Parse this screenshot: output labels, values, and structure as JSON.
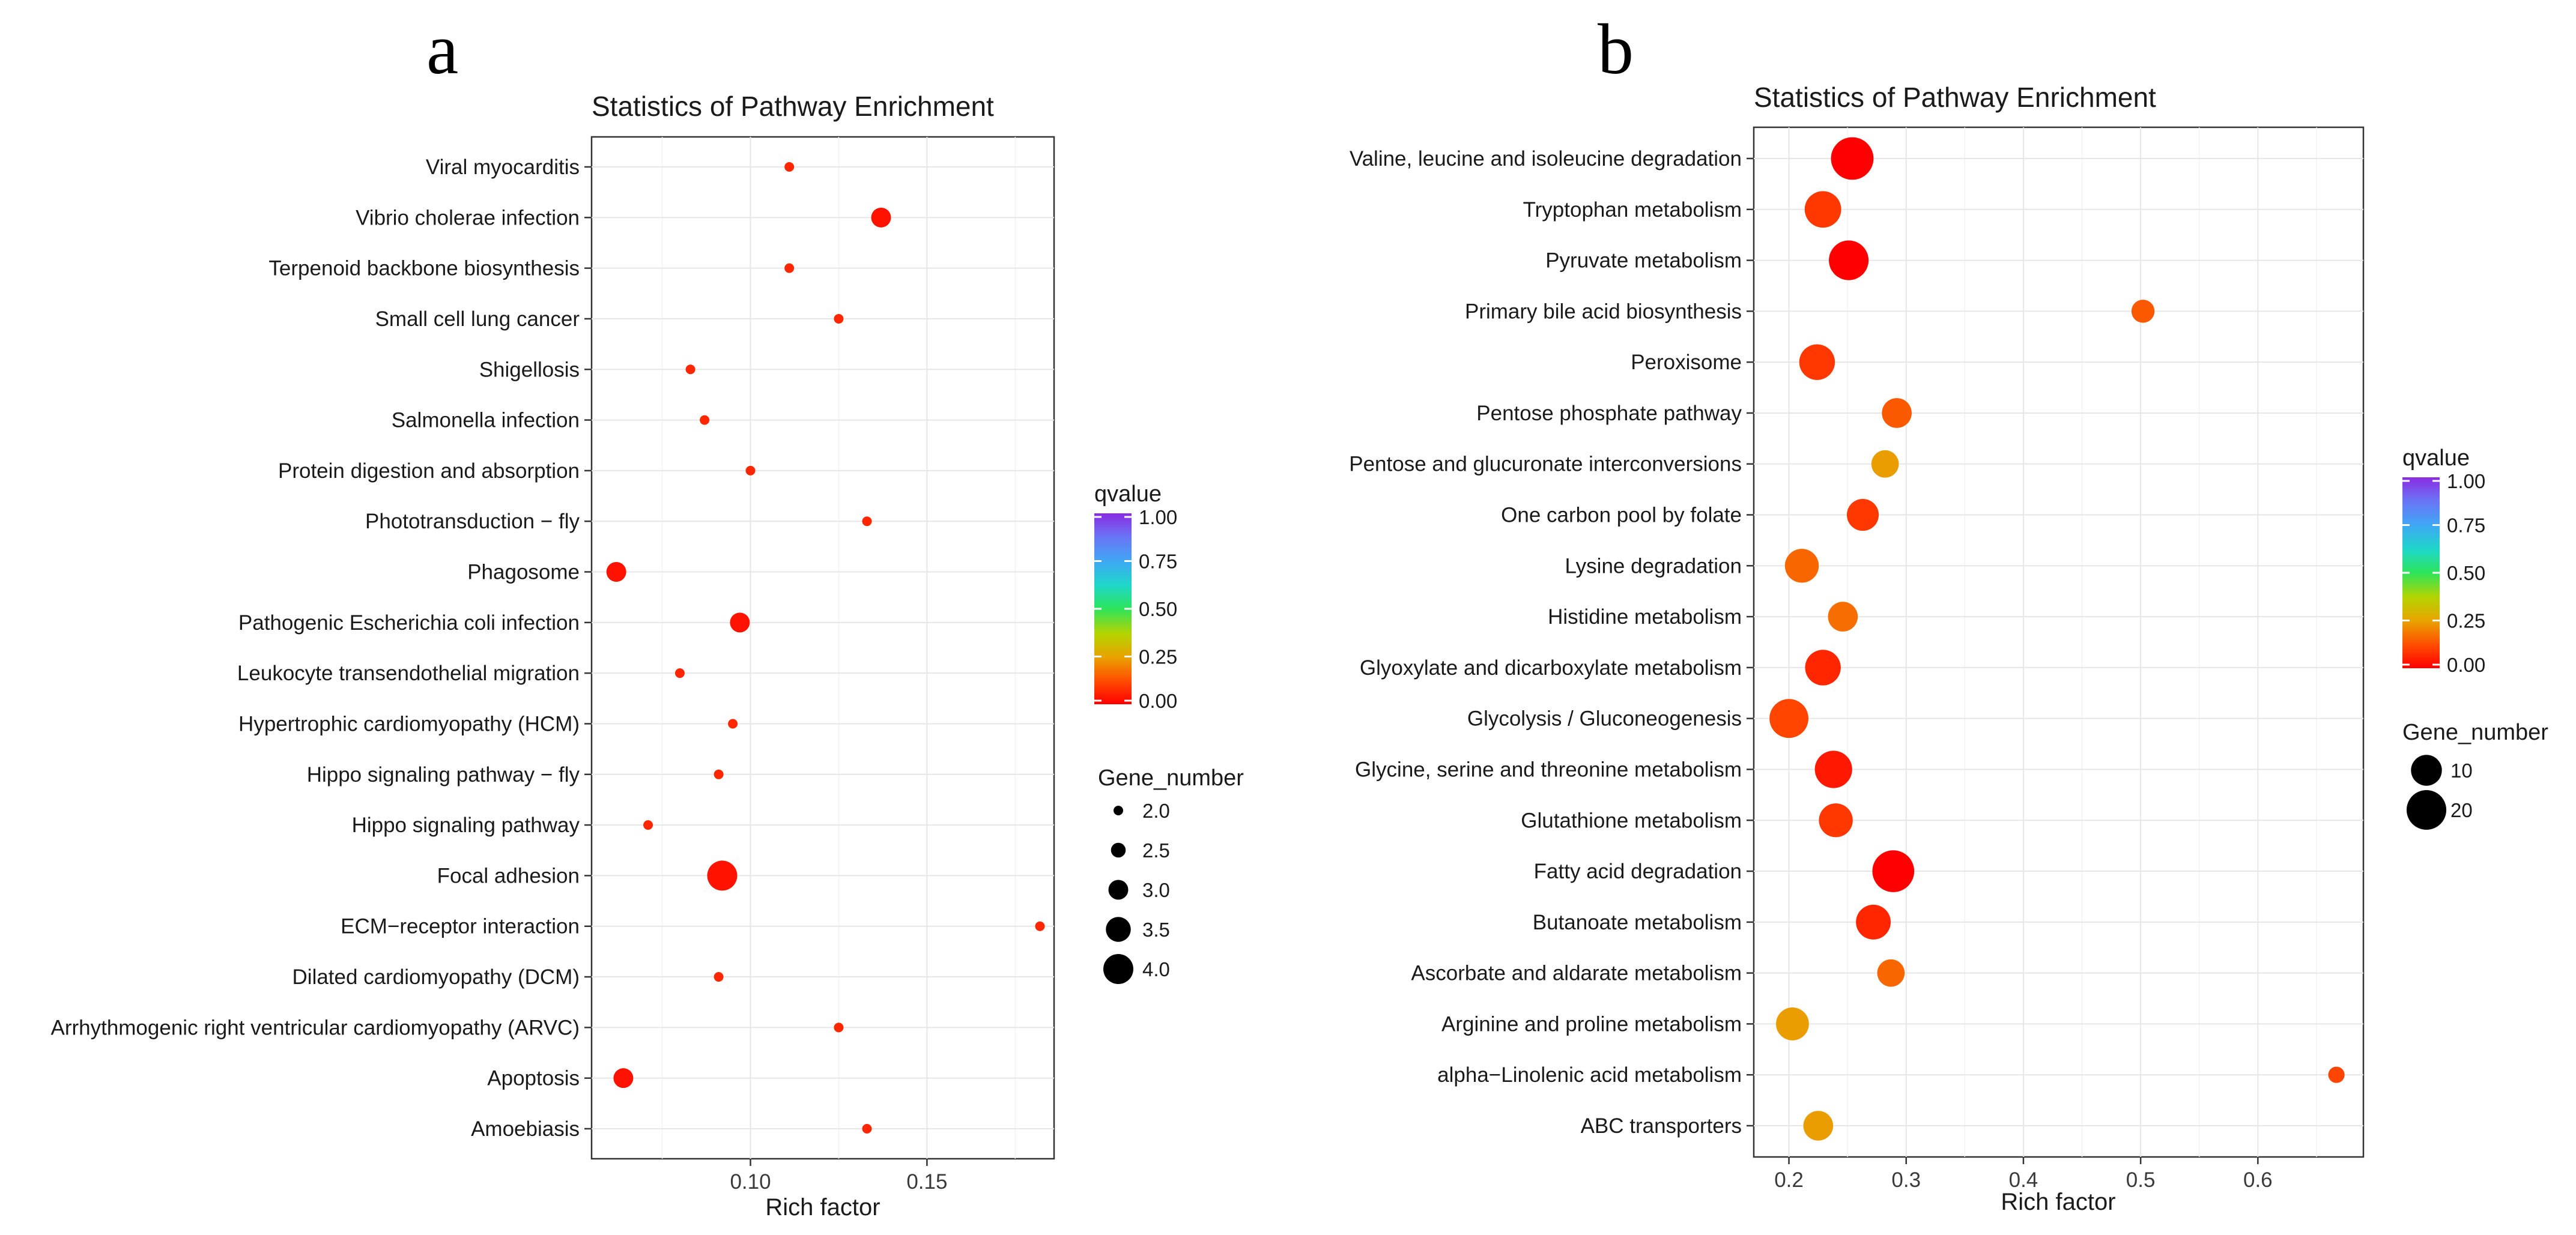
{
  "panels": [
    "a",
    "b"
  ],
  "chart_data": [
    {
      "type": "scatter",
      "panel": "a",
      "title": "Statistics of Pathway Enrichment",
      "xlabel": "Rich factor",
      "ylabel": "",
      "xlim": [
        0.055,
        0.186
      ],
      "xticks": [
        0.1,
        0.15
      ],
      "xtick_labels": [
        "0.10",
        "0.15"
      ],
      "grid": true,
      "categories": [
        "Viral myocarditis",
        "Vibrio cholerae infection",
        "Terpenoid backbone biosynthesis",
        "Small cell lung cancer",
        "Shigellosis",
        "Salmonella infection",
        "Protein digestion and absorption",
        "Phototransduction − fly",
        "Phagosome",
        "Pathogenic Escherichia coli infection",
        "Leukocyte transendothelial migration",
        "Hypertrophic cardiomyopathy (HCM)",
        "Hippo signaling pathway − fly",
        "Hippo signaling pathway",
        "Focal adhesion",
        "ECM−receptor interaction",
        "Dilated cardiomyopathy (DCM)",
        "Arrhythmogenic right ventricular cardiomyopathy (ARVC)",
        "Apoptosis",
        "Amoebiasis"
      ],
      "rich_factor": [
        0.111,
        0.137,
        0.111,
        0.125,
        0.083,
        0.087,
        0.1,
        0.133,
        0.062,
        0.097,
        0.08,
        0.095,
        0.091,
        0.071,
        0.092,
        0.182,
        0.091,
        0.125,
        0.064,
        0.133
      ],
      "gene_number": [
        2,
        3,
        2,
        2,
        2,
        2,
        2,
        2,
        3,
        3,
        2,
        2,
        2,
        2,
        4,
        2,
        2,
        2,
        3,
        2
      ],
      "qvalue": [
        0.06,
        0.03,
        0.06,
        0.06,
        0.06,
        0.06,
        0.06,
        0.06,
        0.03,
        0.03,
        0.06,
        0.06,
        0.06,
        0.06,
        0.03,
        0.06,
        0.06,
        0.06,
        0.03,
        0.06
      ],
      "legend_color": {
        "title": "qvalue",
        "range": [
          0.0,
          1.0
        ],
        "ticks": [
          1.0,
          0.75,
          0.5,
          0.25,
          0.0
        ],
        "tick_labels": [
          "1.00",
          "0.75",
          "0.50",
          "0.25",
          "0.00"
        ]
      },
      "legend_size": {
        "title": "Gene_number",
        "values": [
          2.0,
          2.5,
          3.0,
          3.5,
          4.0
        ],
        "labels": [
          "2.0",
          "2.5",
          "3.0",
          "3.5",
          "4.0"
        ]
      }
    },
    {
      "type": "scatter",
      "panel": "b",
      "title": "Statistics of Pathway Enrichment",
      "xlabel": "Rich factor",
      "ylabel": "",
      "xlim": [
        0.17,
        0.69
      ],
      "xticks": [
        0.2,
        0.3,
        0.4,
        0.5,
        0.6
      ],
      "xtick_labels": [
        "0.2",
        "0.3",
        "0.4",
        "0.5",
        "0.6"
      ],
      "grid": true,
      "categories": [
        "Valine, leucine and isoleucine degradation",
        "Tryptophan metabolism",
        "Pyruvate metabolism",
        "Primary bile acid biosynthesis",
        "Peroxisome",
        "Pentose phosphate pathway",
        "Pentose and glucuronate interconversions",
        "One carbon pool by folate",
        "Lysine degradation",
        "Histidine metabolism",
        "Glyoxylate and dicarboxylate metabolism",
        "Glycolysis / Gluconeogenesis",
        "Glycine, serine and threonine metabolism",
        "Glutathione metabolism",
        "Fatty acid degradation",
        "Butanoate metabolism",
        "Ascorbate and aldarate metabolism",
        "Arginine and proline metabolism",
        "alpha−Linolenic acid metabolism",
        "ABC transporters"
      ],
      "rich_factor": [
        0.254,
        0.229,
        0.251,
        0.502,
        0.224,
        0.292,
        0.282,
        0.263,
        0.211,
        0.246,
        0.229,
        0.2,
        0.238,
        0.24,
        0.289,
        0.272,
        0.287,
        0.203,
        0.667,
        0.225
      ],
      "gene_number": [
        24,
        16,
        20,
        4,
        15,
        9,
        7,
        11,
        13,
        9,
        15,
        19,
        17,
        13,
        23,
        14,
        7,
        12,
        1,
        9
      ],
      "qvalue": [
        0.0,
        0.09,
        0.0,
        0.14,
        0.09,
        0.14,
        0.24,
        0.09,
        0.16,
        0.17,
        0.06,
        0.11,
        0.04,
        0.09,
        0.0,
        0.06,
        0.16,
        0.24,
        0.11,
        0.24
      ],
      "legend_color": {
        "title": "qvalue",
        "range": [
          0.0,
          1.0
        ],
        "ticks": [
          1.0,
          0.75,
          0.5,
          0.25,
          0.0
        ],
        "tick_labels": [
          "1.00",
          "0.75",
          "0.50",
          "0.25",
          "0.00"
        ]
      },
      "legend_size": {
        "title": "Gene_number",
        "values": [
          10,
          20
        ],
        "labels": [
          "10",
          "20"
        ]
      }
    }
  ]
}
